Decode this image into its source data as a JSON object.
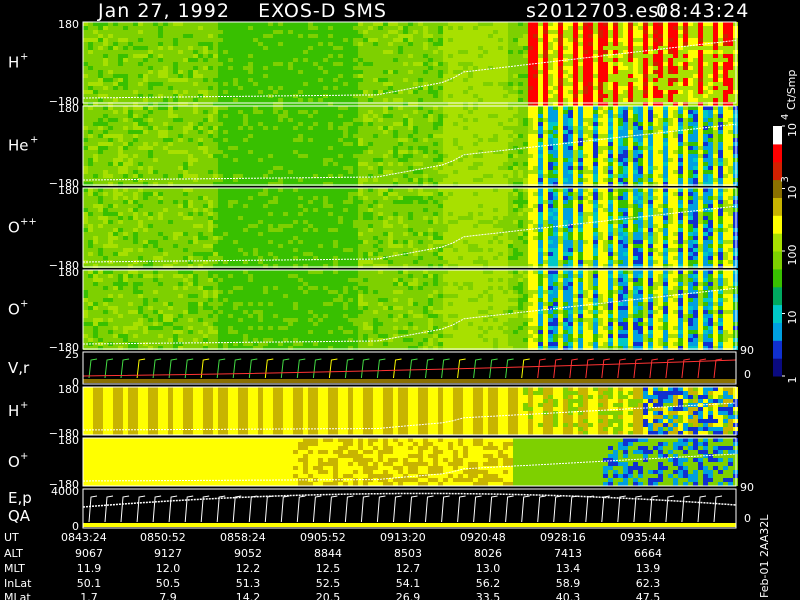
{
  "header": {
    "title": "Jan 27, 1992    EXOS-D SMS",
    "file": "s2012703.esr",
    "time": "08:43:24"
  },
  "colors": {
    "bg": "#000000",
    "frame": "#ffffff",
    "trace": "#ffffff",
    "green_line": "#44dd44",
    "red_line": "#ff3333",
    "scale": [
      "#0a0a80",
      "#1030d0",
      "#00a0e0",
      "#00c8c8",
      "#00a860",
      "#38c000",
      "#7ed000",
      "#a8e000",
      "#ffff00",
      "#c8b400",
      "#8a7000",
      "#d22000",
      "#ff0000",
      "#ffffff"
    ]
  },
  "colorbar": {
    "unit": "Ct/Smp",
    "labels": [
      {
        "base": "10",
        "exp": "4",
        "value": 10000
      },
      {
        "base": "10",
        "exp": "3",
        "value": 1000
      },
      {
        "base": "100",
        "exp": "",
        "value": 100
      },
      {
        "base": "10",
        "exp": "",
        "value": 10
      },
      {
        "base": "1",
        "exp": "",
        "value": 1
      }
    ]
  },
  "panels": [
    {
      "species": "H",
      "charge": "+",
      "top": "180",
      "bottom": "−180"
    },
    {
      "species": "He",
      "charge": "+",
      "top": "180",
      "bottom": "−180"
    },
    {
      "species": "O",
      "charge": "++",
      "top": "180",
      "bottom": "−180"
    },
    {
      "species": "O",
      "charge": "+",
      "top": "180",
      "bottom": "−180"
    },
    {
      "species": "V,r",
      "charge": "",
      "top": "25",
      "bottom": "0",
      "right_top": "90",
      "right_bottom": "0"
    },
    {
      "species": "H",
      "charge": "+",
      "top": "180",
      "bottom": "−180"
    },
    {
      "species": "O",
      "charge": "+",
      "top": "180",
      "bottom": "−180"
    },
    {
      "species": "E,p",
      "species2": "QA",
      "charge": "",
      "top": "4000",
      "bottom": "0",
      "right_top": "90",
      "right_bottom": "0"
    }
  ],
  "table": {
    "row_labels": [
      "UT",
      "ALT",
      "MLT",
      "InLat",
      "MLat"
    ],
    "columns": [
      {
        "UT": "0843:24",
        "ALT": "9067",
        "MLT": "11.9",
        "InLat": "50.1",
        "MLat": "1.7"
      },
      {
        "UT": "0850:52",
        "ALT": "9127",
        "MLT": "12.0",
        "InLat": "50.5",
        "MLat": "7.9"
      },
      {
        "UT": "0858:24",
        "ALT": "9052",
        "MLT": "12.2",
        "InLat": "51.3",
        "MLat": "14.2"
      },
      {
        "UT": "0905:52",
        "ALT": "8844",
        "MLT": "12.5",
        "InLat": "52.5",
        "MLat": "20.5"
      },
      {
        "UT": "0913:20",
        "ALT": "8503",
        "MLT": "12.7",
        "InLat": "54.1",
        "MLat": "26.9"
      },
      {
        "UT": "0920:48",
        "ALT": "8026",
        "MLT": "13.0",
        "InLat": "56.2",
        "MLat": "33.5"
      },
      {
        "UT": "0928:16",
        "ALT": "7413",
        "MLT": "13.4",
        "InLat": "58.9",
        "MLat": "40.3"
      },
      {
        "UT": "0935:44",
        "ALT": "6664",
        "MLT": "13.9",
        "InLat": "62.3",
        "MLat": "47.5"
      }
    ],
    "footer": "Feb-01 2AA32L"
  },
  "chart_data": {
    "type": "heatmap",
    "title": "Jan 27, 1992    EXOS-D SMS",
    "x": [
      "0843:24",
      "0850:52",
      "0858:24",
      "0905:52",
      "0913:20",
      "0920:48",
      "0928:16",
      "0935:44"
    ],
    "xlabel": "UT",
    "ylabel": "",
    "ylim": [
      -180,
      180
    ],
    "colorbar_unit": "Ct/Smp",
    "colorbar_range": [
      1,
      10000
    ],
    "series": [
      {
        "name": "H+"
      },
      {
        "name": "He+"
      },
      {
        "name": "O++"
      },
      {
        "name": "O+"
      },
      {
        "name": "V,r",
        "ylim": [
          0,
          25
        ]
      },
      {
        "name": "H+"
      },
      {
        "name": "O+"
      },
      {
        "name": "E,p",
        "ylim": [
          0,
          4000
        ]
      }
    ]
  }
}
